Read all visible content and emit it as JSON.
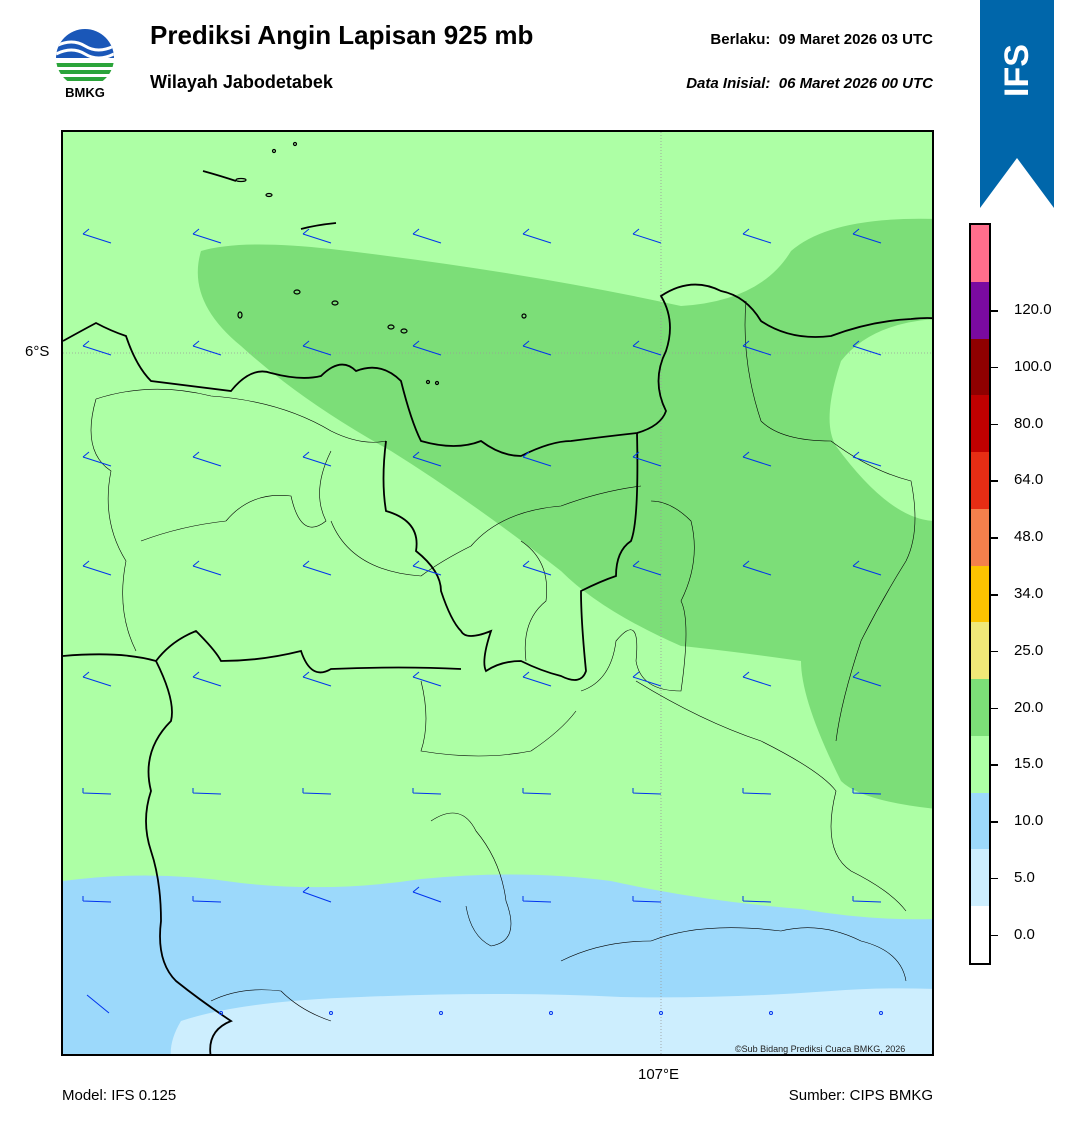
{
  "header": {
    "title": "Prediksi Angin Lapisan 925 mb",
    "subtitle": "Wilayah Jabodetabek",
    "valid": "Berlaku:  09 Maret 2026 03 UTC",
    "initial": "Data Inisial:  06 Maret 2026 00 UTC",
    "logo_text": "BMKG",
    "badge": "IFS"
  },
  "map": {
    "lat_label": "6°S",
    "lon_label": "107°E",
    "copyright": "©Sub Bidang Prediksi Cuaca BMKG, 2026"
  },
  "footer": {
    "model": "Model: IFS 0.125",
    "source": "Sumber: CIPS BMKG"
  },
  "legend": {
    "labels": [
      "0.0",
      "5.0",
      "10.0",
      "15.0",
      "20.0",
      "25.0",
      "34.0",
      "48.0",
      "64.0",
      "80.0",
      "100.0",
      "120.0"
    ],
    "colors": [
      "#ffffff",
      "#cdeefe",
      "#9cd9fb",
      "#adffa5",
      "#7cde78",
      "#f0e878",
      "#fcc400",
      "#f4804c",
      "#e62d14",
      "#c00000",
      "#8f0000",
      "#7a0aa0",
      "#ff6e8c"
    ]
  },
  "colors": {
    "brand_blue": "#0066aa",
    "wind_barb": "#0033ee"
  }
}
